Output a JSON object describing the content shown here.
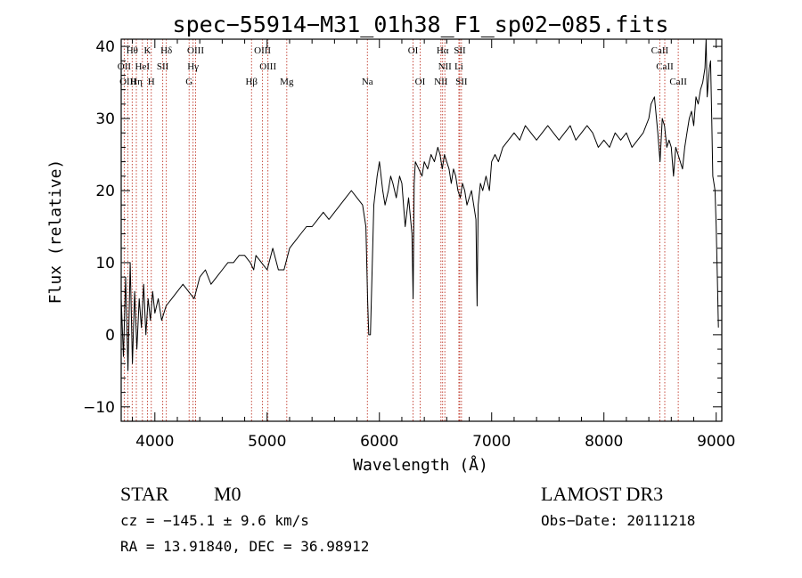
{
  "chart_data": {
    "type": "line",
    "title": "spec−55914−M31_01h38_F1_sp02−085.fits",
    "xlabel": "Wavelength (Å)",
    "ylabel": "Flux (relative)",
    "xlim": [
      3700,
      9050
    ],
    "ylim": [
      -12,
      41
    ],
    "xticks": [
      4000,
      5000,
      6000,
      7000,
      8000,
      9000
    ],
    "xtick_labels": [
      "4000",
      "5000",
      "6000",
      "7000",
      "8000",
      "9000"
    ],
    "yticks": [
      -10,
      0,
      10,
      20,
      30,
      40
    ],
    "ytick_labels": [
      "−10",
      "0",
      "10",
      "20",
      "30",
      "40"
    ],
    "series": [
      {
        "name": "flux",
        "color": "#000000",
        "x": [
          3700,
          3720,
          3740,
          3760,
          3780,
          3800,
          3820,
          3840,
          3860,
          3880,
          3900,
          3920,
          3940,
          3960,
          3980,
          4000,
          4030,
          4060,
          4100,
          4150,
          4200,
          4250,
          4300,
          4350,
          4400,
          4450,
          4500,
          4550,
          4600,
          4650,
          4700,
          4750,
          4800,
          4850,
          4880,
          4900,
          4950,
          5000,
          5050,
          5100,
          5150,
          5200,
          5250,
          5300,
          5350,
          5400,
          5450,
          5500,
          5550,
          5600,
          5650,
          5700,
          5750,
          5800,
          5850,
          5880,
          5895,
          5905,
          5920,
          5950,
          5980,
          6000,
          6030,
          6050,
          6080,
          6100,
          6120,
          6150,
          6180,
          6200,
          6230,
          6260,
          6290,
          6300,
          6310,
          6320,
          6350,
          6380,
          6400,
          6430,
          6460,
          6490,
          6520,
          6540,
          6560,
          6580,
          6600,
          6620,
          6640,
          6660,
          6680,
          6700,
          6720,
          6740,
          6760,
          6780,
          6800,
          6820,
          6840,
          6860,
          6870,
          6880,
          6900,
          6920,
          6950,
          6980,
          7000,
          7030,
          7060,
          7100,
          7150,
          7200,
          7250,
          7300,
          7350,
          7400,
          7450,
          7500,
          7550,
          7600,
          7650,
          7700,
          7750,
          7800,
          7850,
          7900,
          7950,
          8000,
          8050,
          8100,
          8150,
          8200,
          8250,
          8300,
          8350,
          8400,
          8420,
          8450,
          8480,
          8500,
          8520,
          8540,
          8560,
          8580,
          8600,
          8620,
          8640,
          8660,
          8680,
          8700,
          8720,
          8740,
          8760,
          8780,
          8800,
          8820,
          8840,
          8860,
          8880,
          8900,
          8910,
          8920,
          8930,
          8940,
          8950,
          8960,
          8970,
          8980,
          8990,
          9000,
          9010,
          9020
        ],
        "y": [
          5,
          -3,
          8,
          -5,
          10,
          -4,
          6,
          -2,
          5,
          1,
          7,
          0,
          5,
          2,
          6,
          3,
          5,
          2,
          4,
          5,
          6,
          7,
          6,
          5,
          8,
          9,
          7,
          8,
          9,
          10,
          10,
          11,
          11,
          10,
          9,
          11,
          10,
          9,
          12,
          9,
          9,
          12,
          13,
          14,
          15,
          15,
          16,
          17,
          16,
          17,
          18,
          19,
          20,
          19,
          18,
          15,
          5,
          0,
          0,
          18,
          22,
          24,
          20,
          18,
          20,
          22,
          21,
          19,
          22,
          21,
          15,
          19,
          14,
          5,
          21,
          24,
          23,
          22,
          24,
          23,
          25,
          24,
          26,
          25,
          23,
          25,
          24,
          23,
          21,
          23,
          22,
          20,
          19,
          21,
          20,
          18,
          19,
          20,
          18,
          16,
          4,
          18,
          21,
          20,
          22,
          20,
          24,
          25,
          24,
          26,
          27,
          28,
          27,
          29,
          28,
          27,
          28,
          29,
          28,
          27,
          28,
          29,
          27,
          28,
          29,
          28,
          26,
          27,
          26,
          28,
          27,
          28,
          26,
          27,
          28,
          30,
          32,
          33,
          28,
          24,
          30,
          29,
          26,
          27,
          26,
          22,
          26,
          25,
          24,
          23,
          26,
          28,
          30,
          31,
          29,
          33,
          32,
          34,
          35,
          37,
          41,
          33,
          35,
          37,
          38,
          30,
          22,
          21,
          20,
          15,
          8,
          1
        ]
      }
    ],
    "line_markers": [
      {
        "label": "Hθ",
        "x": 3798,
        "row": 0
      },
      {
        "label": "K",
        "x": 3934,
        "row": 0
      },
      {
        "label": "Hδ",
        "x": 4102,
        "row": 0
      },
      {
        "label": "OIII",
        "x": 4363,
        "row": 0
      },
      {
        "label": "OIII",
        "x": 4959,
        "row": 0
      },
      {
        "label": "OI",
        "x": 6300,
        "row": 0
      },
      {
        "label": "Hα",
        "x": 6563,
        "row": 0
      },
      {
        "label": "SII",
        "x": 6716,
        "row": 0
      },
      {
        "label": "CaII",
        "x": 8498,
        "row": 0
      },
      {
        "label": "OII",
        "x": 3727,
        "row": 1
      },
      {
        "label": "HeI",
        "x": 3889,
        "row": 1
      },
      {
        "label": "SII",
        "x": 4070,
        "row": 1
      },
      {
        "label": "Hγ",
        "x": 4340,
        "row": 1
      },
      {
        "label": "OIII",
        "x": 5007,
        "row": 1
      },
      {
        "label": "NII",
        "x": 6583,
        "row": 1
      },
      {
        "label": "Li",
        "x": 6708,
        "row": 1
      },
      {
        "label": "CaII",
        "x": 8542,
        "row": 1
      },
      {
        "label": "OIII",
        "x": 3760,
        "row": 2
      },
      {
        "label": "Hη",
        "x": 3835,
        "row": 2
      },
      {
        "label": "H",
        "x": 3968,
        "row": 2
      },
      {
        "label": "G",
        "x": 4305,
        "row": 2
      },
      {
        "label": "Hβ",
        "x": 4861,
        "row": 2
      },
      {
        "label": "Mg",
        "x": 5175,
        "row": 2
      },
      {
        "label": "Na",
        "x": 5893,
        "row": 2
      },
      {
        "label": "OI",
        "x": 6363,
        "row": 2
      },
      {
        "label": "NII",
        "x": 6548,
        "row": 2
      },
      {
        "label": "SII",
        "x": 6731,
        "row": 2
      },
      {
        "label": "CaII",
        "x": 8662,
        "row": 2
      }
    ]
  },
  "info": {
    "object_class": "STAR",
    "subclass": "M0",
    "survey": "LAMOST DR3",
    "cz": "cz = −145.1 ± 9.6 km/s",
    "obs_date": "Obs−Date: 20111218",
    "radec": "RA =  13.91840, DEC =  36.98912"
  }
}
